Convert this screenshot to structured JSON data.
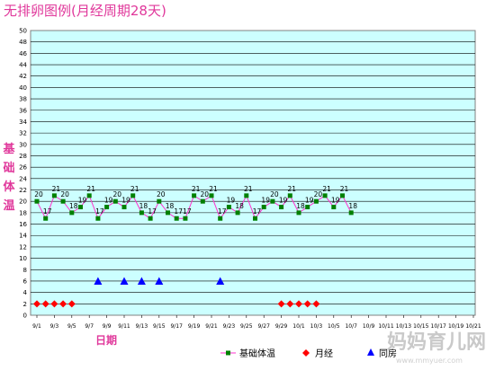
{
  "chart_data": {
    "type": "line",
    "title": "无排卵图例(月经周期28天)",
    "ylabel": "基础体温",
    "xlabel": "日期",
    "ylim": [
      0,
      50
    ],
    "yticks": [
      0,
      2,
      4,
      6,
      8,
      10,
      12,
      14,
      16,
      18,
      20,
      22,
      24,
      26,
      28,
      30,
      32,
      34,
      36,
      38,
      40,
      42,
      44,
      46,
      48,
      50
    ],
    "x_tick_labels": [
      "9/1",
      "9/3",
      "9/5",
      "9/7",
      "9/9",
      "9/11",
      "9/13",
      "9/15",
      "9/17",
      "9/19",
      "9/21",
      "9/23",
      "9/25",
      "9/27",
      "9/29",
      "10/1",
      "10/3",
      "10/5",
      "10/7",
      "10/9",
      "10/11",
      "10/13",
      "10/15",
      "10/17",
      "10/19",
      "10/21"
    ],
    "grid": true,
    "series": [
      {
        "name": "基础体温",
        "color": "#ff33cc",
        "marker_color": "#008000",
        "marker": "square",
        "values": [
          20,
          17,
          21,
          20,
          18,
          19,
          21,
          17,
          19,
          20,
          19,
          21,
          18,
          17,
          20,
          18,
          17,
          17,
          21,
          20,
          21,
          17,
          19,
          18,
          21,
          17,
          19,
          20,
          19,
          21,
          18,
          19,
          20,
          21,
          19,
          21,
          18
        ]
      },
      {
        "name": "月经",
        "color": "#ff0000",
        "marker": "diamond",
        "points": [
          [
            0,
            2
          ],
          [
            1,
            2
          ],
          [
            2,
            2
          ],
          [
            3,
            2
          ],
          [
            4,
            2
          ],
          [
            28,
            2
          ],
          [
            29,
            2
          ],
          [
            30,
            2
          ],
          [
            31,
            2
          ],
          [
            32,
            2
          ]
        ]
      },
      {
        "name": "同房",
        "color": "#0000ff",
        "marker": "triangle",
        "points": [
          [
            7,
            6
          ],
          [
            10,
            6
          ],
          [
            12,
            6
          ],
          [
            14,
            6
          ],
          [
            21,
            6
          ]
        ]
      }
    ],
    "data_labels_shown": [
      "20",
      "17",
      "21",
      "20",
      "18",
      "21",
      "17",
      "19",
      "20",
      "19",
      "21",
      "18",
      "17",
      "20",
      "18",
      "17",
      "17",
      "21",
      "20",
      "21",
      "17",
      "19",
      "18",
      "21",
      "19",
      "20",
      "19",
      "21",
      "18",
      "20",
      "21",
      "19",
      "21",
      "18"
    ]
  },
  "watermark": {
    "text": "妈妈育儿网",
    "subtext": "www.mmyuer.com"
  }
}
